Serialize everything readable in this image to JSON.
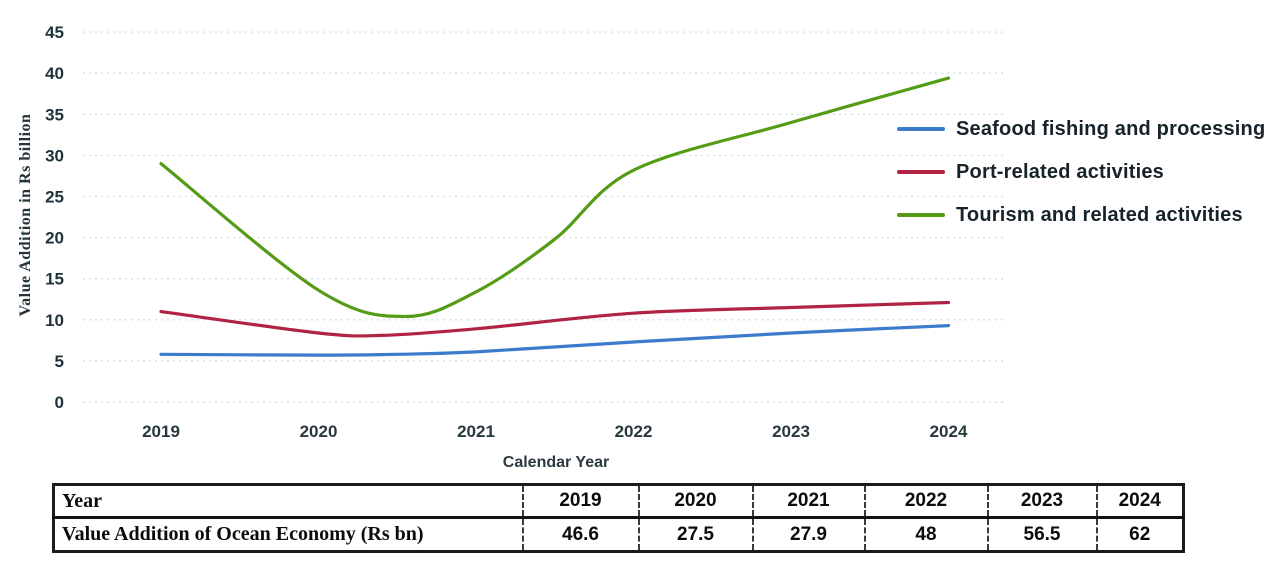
{
  "chart_data": {
    "type": "line",
    "title": "",
    "xlabel": "Calendar Year",
    "ylabel": "Value Addition in Rs billion",
    "x_ticks": [
      "2019",
      "2020",
      "2021",
      "2022",
      "2023",
      "2024"
    ],
    "y_ticks": [
      0,
      5,
      10,
      15,
      20,
      25,
      30,
      35,
      40,
      45
    ],
    "xlim": [
      2019,
      2024
    ],
    "ylim": [
      0,
      45
    ],
    "grid": "horizontal dotted gridlines",
    "legend_position": "right inside",
    "series": [
      {
        "name": "Seafood fishing and processing",
        "color": "#3c7ccd",
        "x": [
          2019,
          2020,
          2020.5,
          2021,
          2022,
          2023,
          2024
        ],
        "values": [
          5.8,
          5.7,
          5.8,
          6.1,
          7.3,
          8.4,
          9.3
        ]
      },
      {
        "name": "Port-related activities",
        "color": "#b02342",
        "x": [
          2019,
          2020,
          2020.4,
          2021,
          2022,
          2023,
          2024
        ],
        "values": [
          11.0,
          8.4,
          8.1,
          8.9,
          10.8,
          11.5,
          12.1
        ]
      },
      {
        "name": "Tourism and related activities",
        "color": "#549c16",
        "x": [
          2019,
          2020,
          2020.55,
          2021,
          2021.5,
          2022,
          2023,
          2024
        ],
        "values": [
          29.0,
          13.6,
          10.4,
          13.4,
          19.8,
          28.2,
          34.0,
          39.4
        ]
      }
    ]
  },
  "table": {
    "header_row": [
      "Year",
      "2019",
      "2020",
      "2021",
      "2022",
      "2023",
      "2024"
    ],
    "data_row": [
      "Value Addition of Ocean Economy (Rs bn)",
      "46.6",
      "27.5",
      "27.9",
      "48",
      "56.5",
      "62"
    ]
  }
}
